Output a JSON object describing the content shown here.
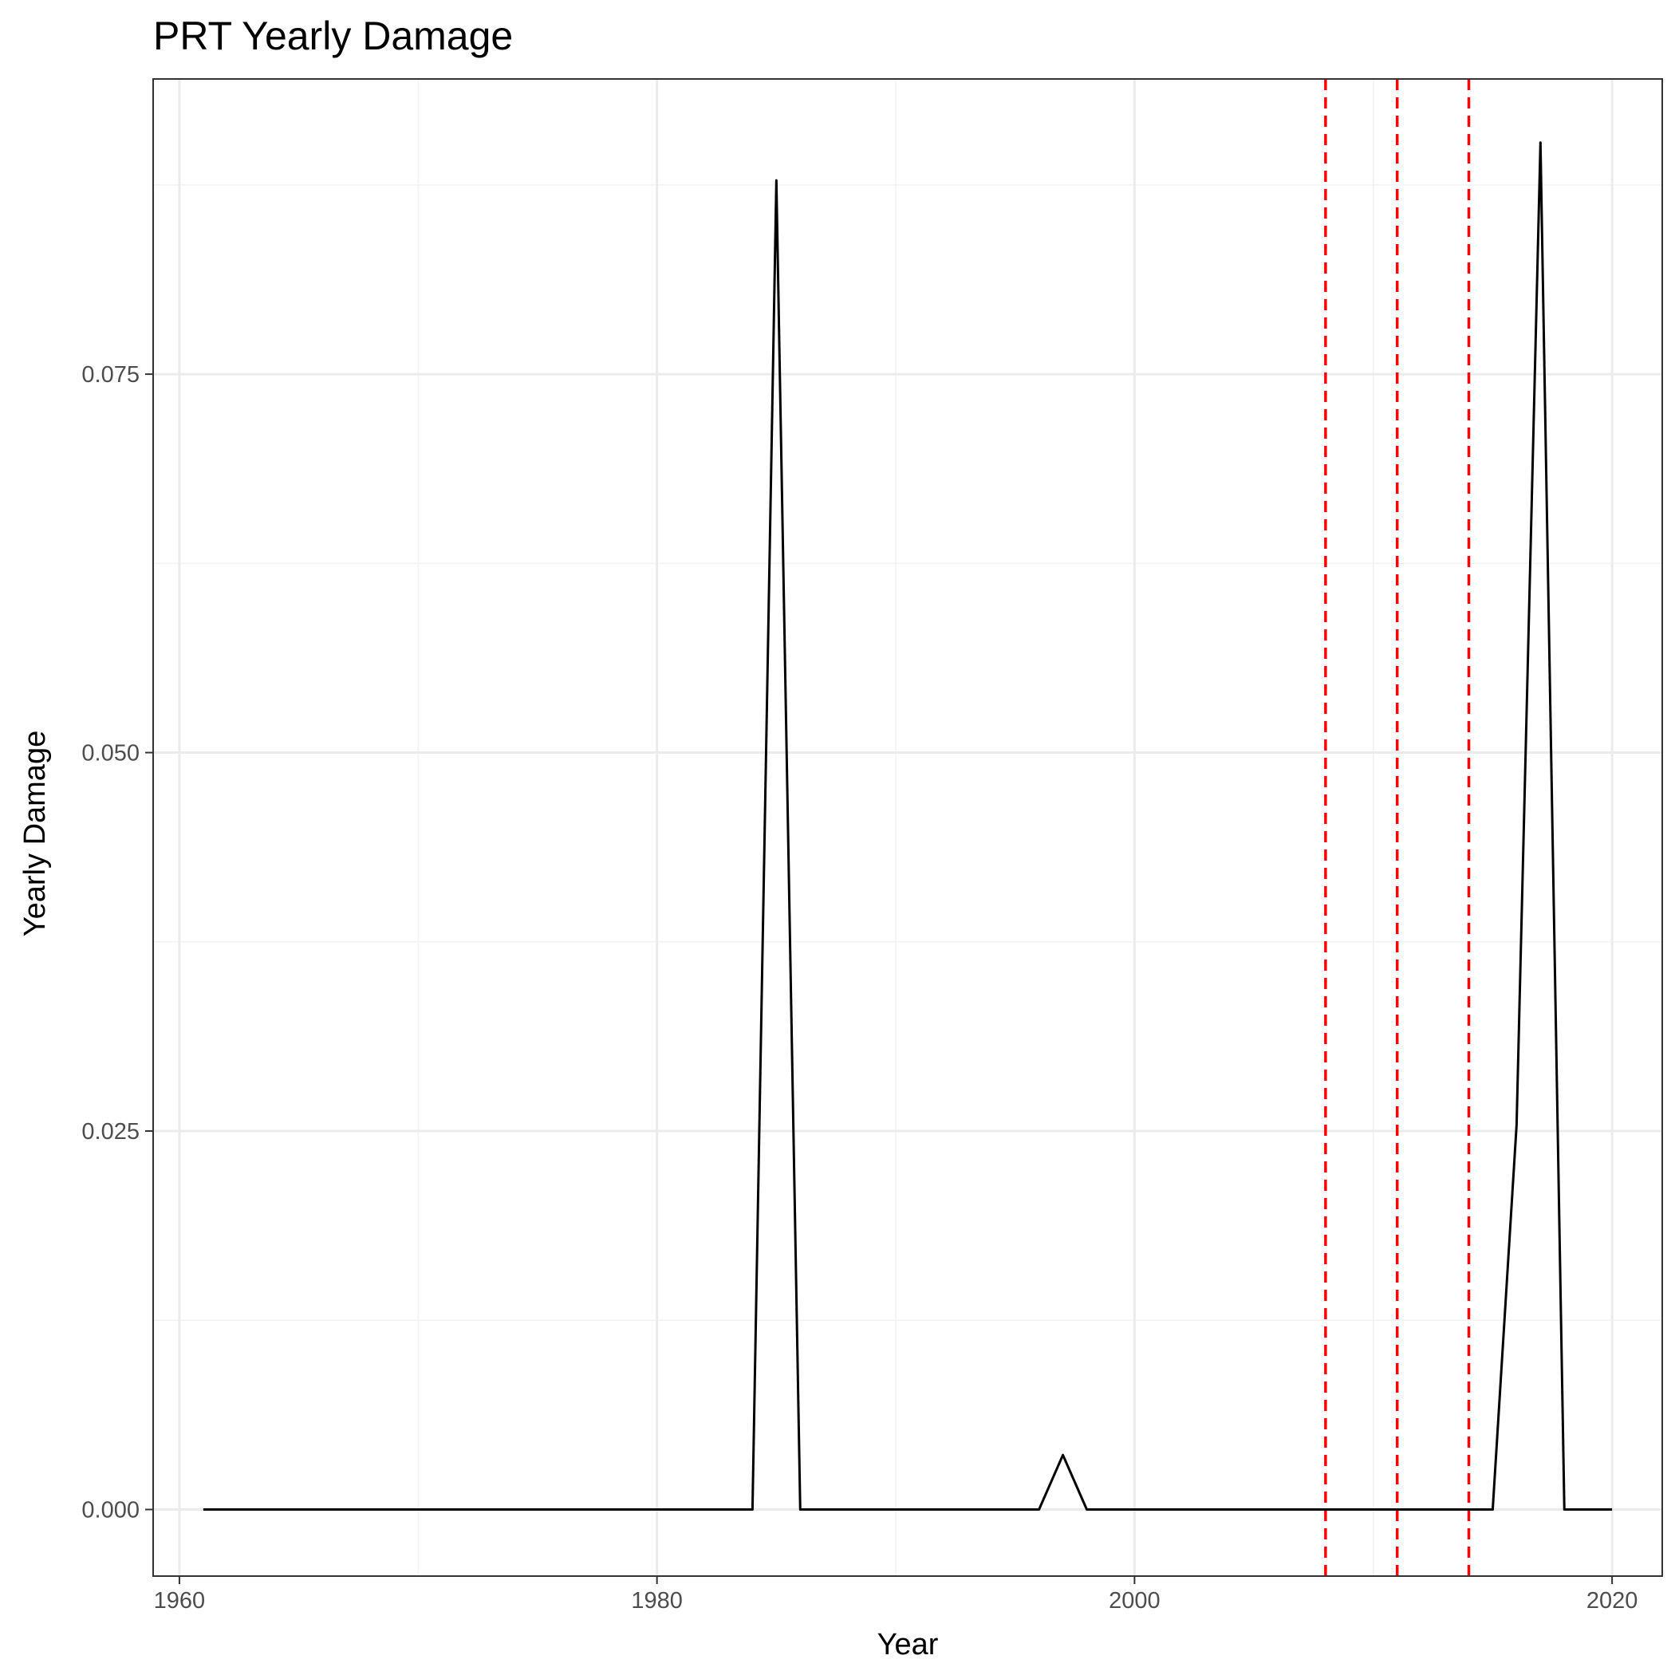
{
  "chart_data": {
    "type": "line",
    "title": "PRT Yearly Damage",
    "xlabel": "Year",
    "ylabel": "Yearly Damage",
    "xlim": [
      1958.9,
      2022.1
    ],
    "ylim": [
      -0.0044,
      0.0945
    ],
    "x_ticks": [
      1960,
      1980,
      2000,
      2020
    ],
    "x_tick_labels": [
      "1960",
      "1980",
      "2000",
      "2020"
    ],
    "x_minor_ticks": [
      1970,
      1990,
      2010
    ],
    "y_ticks": [
      0,
      0.025,
      0.05,
      0.075
    ],
    "y_tick_labels": [
      "0.000",
      "0.025",
      "0.050",
      "0.075"
    ],
    "y_minor_ticks": [
      0.0125,
      0.0375,
      0.0625,
      0.0875
    ],
    "grid": true,
    "series": [
      {
        "color": "#000000",
        "x": [
          1961,
          1962,
          1963,
          1964,
          1965,
          1966,
          1967,
          1968,
          1969,
          1970,
          1971,
          1972,
          1973,
          1974,
          1975,
          1976,
          1977,
          1978,
          1979,
          1980,
          1981,
          1982,
          1983,
          1984,
          1985,
          1986,
          1987,
          1988,
          1989,
          1990,
          1991,
          1992,
          1993,
          1994,
          1995,
          1996,
          1997,
          1998,
          1999,
          2000,
          2001,
          2002,
          2003,
          2004,
          2005,
          2006,
          2007,
          2008,
          2009,
          2010,
          2011,
          2012,
          2013,
          2014,
          2015,
          2016,
          2017,
          2018,
          2019,
          2020
        ],
        "y": [
          0,
          0,
          0,
          0,
          0,
          0,
          0,
          0,
          0,
          0,
          0,
          0,
          0,
          0,
          0,
          0,
          0,
          0,
          0,
          0,
          0,
          0,
          0,
          0,
          0.0878,
          0,
          0,
          0,
          0,
          0,
          0,
          0,
          0,
          0,
          0,
          0,
          0.0036,
          0,
          0,
          0,
          0,
          0,
          0,
          0,
          0,
          0,
          0,
          0,
          0,
          0,
          0,
          0,
          0,
          0,
          0,
          0.0254,
          0.0903,
          0,
          0,
          0
        ]
      }
    ],
    "vlines": [
      {
        "x": 2008,
        "color": "#ff0000",
        "style": "dashed"
      },
      {
        "x": 2011,
        "color": "#ff0000",
        "style": "dashed"
      },
      {
        "x": 2014,
        "color": "#ff0000",
        "style": "dashed"
      }
    ],
    "colors": {
      "panel_border": "#333333",
      "grid_major": "#ebebeb",
      "grid_minor": "#f2f2f2",
      "tick": "#333333"
    }
  }
}
